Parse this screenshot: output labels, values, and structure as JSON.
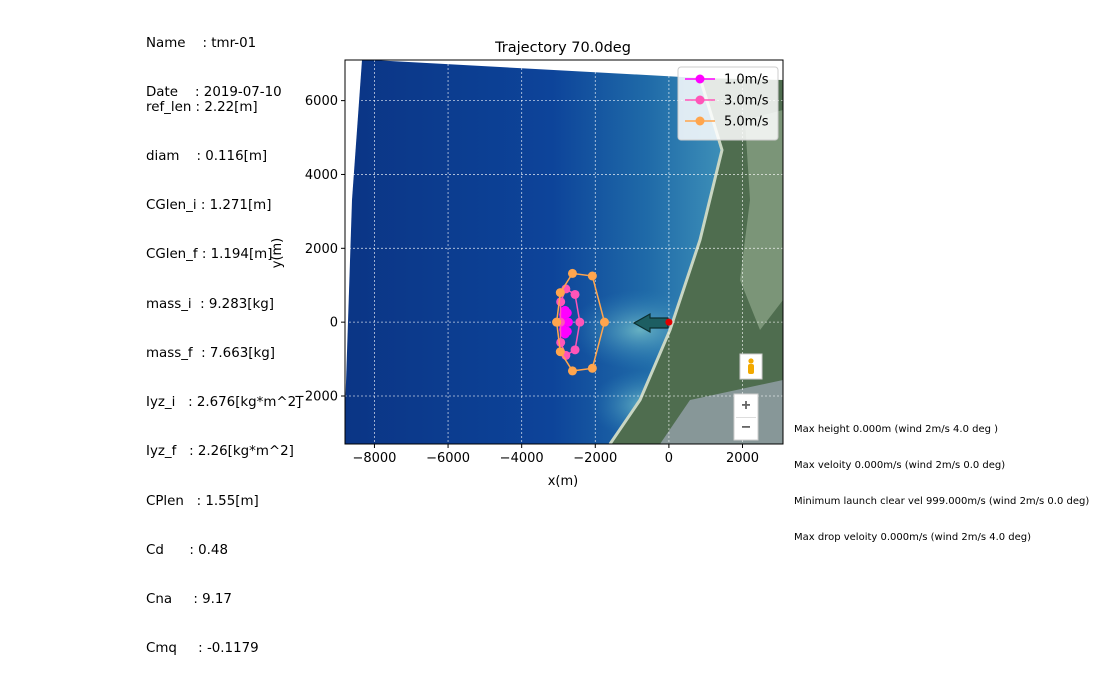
{
  "header": {
    "name_line": "Name    : tmr-01",
    "date_line": "Date    : 2019-07-10"
  },
  "params": [
    "ref_len : 2.22[m]",
    "diam    : 0.116[m]",
    "CGlen_i : 1.271[m]",
    "CGlen_f : 1.194[m]",
    "mass_i  : 9.283[kg]",
    "mass_f  : 7.663[kg]",
    "Iyz_i   : 2.676[kg*m^2]",
    "Iyz_f   : 2.26[kg*m^2]",
    "CPlen   : 1.55[m]",
    "Cd      : 0.48",
    "Cna     : 9.17",
    "Cmq     : -0.1179"
  ],
  "notes": [
    "Max height 0.000m (wind 2m/s 4.0 deg )",
    "Max veloity 0.000m/s (wind 2m/s 0.0 deg)",
    "Minimum launch clear vel 999.000m/s (wind 2m/s 0.0 deg)",
    "Max drop veloity 0.000m/s (wind 2m/s 4.0 deg)"
  ],
  "chart_data": {
    "type": "scatter",
    "title": "Trajectory 70.0deg",
    "xlabel": "x(m)",
    "ylabel": "y(m)",
    "xlim": [
      -8800,
      3100
    ],
    "ylim": [
      -3300,
      7100
    ],
    "xticks": [
      -8000,
      -6000,
      -4000,
      -2000,
      0,
      2000
    ],
    "xtick_labels": [
      "−8000",
      "−6000",
      "−4000",
      "−2000",
      "0",
      "2000"
    ],
    "yticks": [
      -2000,
      0,
      2000,
      4000,
      6000
    ],
    "ytick_labels": [
      "−2000",
      "0",
      "2000",
      "4000",
      "6000"
    ],
    "grid": true,
    "legend_position": "top-right",
    "launch_point": {
      "x": 0,
      "y": 0,
      "color": "#e00000"
    },
    "series": [
      {
        "name": "1.0m/s",
        "color": "#ff00ff",
        "points": [
          {
            "x": -2900,
            "y": 0
          },
          {
            "x": -2860,
            "y": 200
          },
          {
            "x": -2820,
            "y": 320
          },
          {
            "x": -2760,
            "y": 250
          },
          {
            "x": -2730,
            "y": 0
          },
          {
            "x": -2760,
            "y": -250
          },
          {
            "x": -2820,
            "y": -320
          },
          {
            "x": -2860,
            "y": -200
          },
          {
            "x": -2900,
            "y": 0
          }
        ]
      },
      {
        "name": "3.0m/s",
        "color": "#ff55b8",
        "points": [
          {
            "x": -2950,
            "y": 0
          },
          {
            "x": -2940,
            "y": 550
          },
          {
            "x": -2800,
            "y": 900
          },
          {
            "x": -2550,
            "y": 750
          },
          {
            "x": -2420,
            "y": 0
          },
          {
            "x": -2550,
            "y": -750
          },
          {
            "x": -2800,
            "y": -900
          },
          {
            "x": -2940,
            "y": -550
          },
          {
            "x": -2950,
            "y": 0
          }
        ]
      },
      {
        "name": "5.0m/s",
        "color": "#ffa54d",
        "points": [
          {
            "x": -3050,
            "y": 0
          },
          {
            "x": -2950,
            "y": 800
          },
          {
            "x": -2620,
            "y": 1320
          },
          {
            "x": -2080,
            "y": 1250
          },
          {
            "x": -1750,
            "y": 0
          },
          {
            "x": -2080,
            "y": -1250
          },
          {
            "x": -2620,
            "y": -1320
          },
          {
            "x": -2950,
            "y": -800
          },
          {
            "x": -3050,
            "y": 0
          }
        ]
      }
    ]
  },
  "map_toolbar": {
    "person_icon": "pegman-icon",
    "zoom_in_icon": "zoom-in-icon",
    "zoom_out_icon": "zoom-out-icon"
  },
  "colors": {
    "ocean_deep": "#0a3a8a",
    "ocean_shallow": "#2c7fb5",
    "land": "#4f6d4f"
  }
}
